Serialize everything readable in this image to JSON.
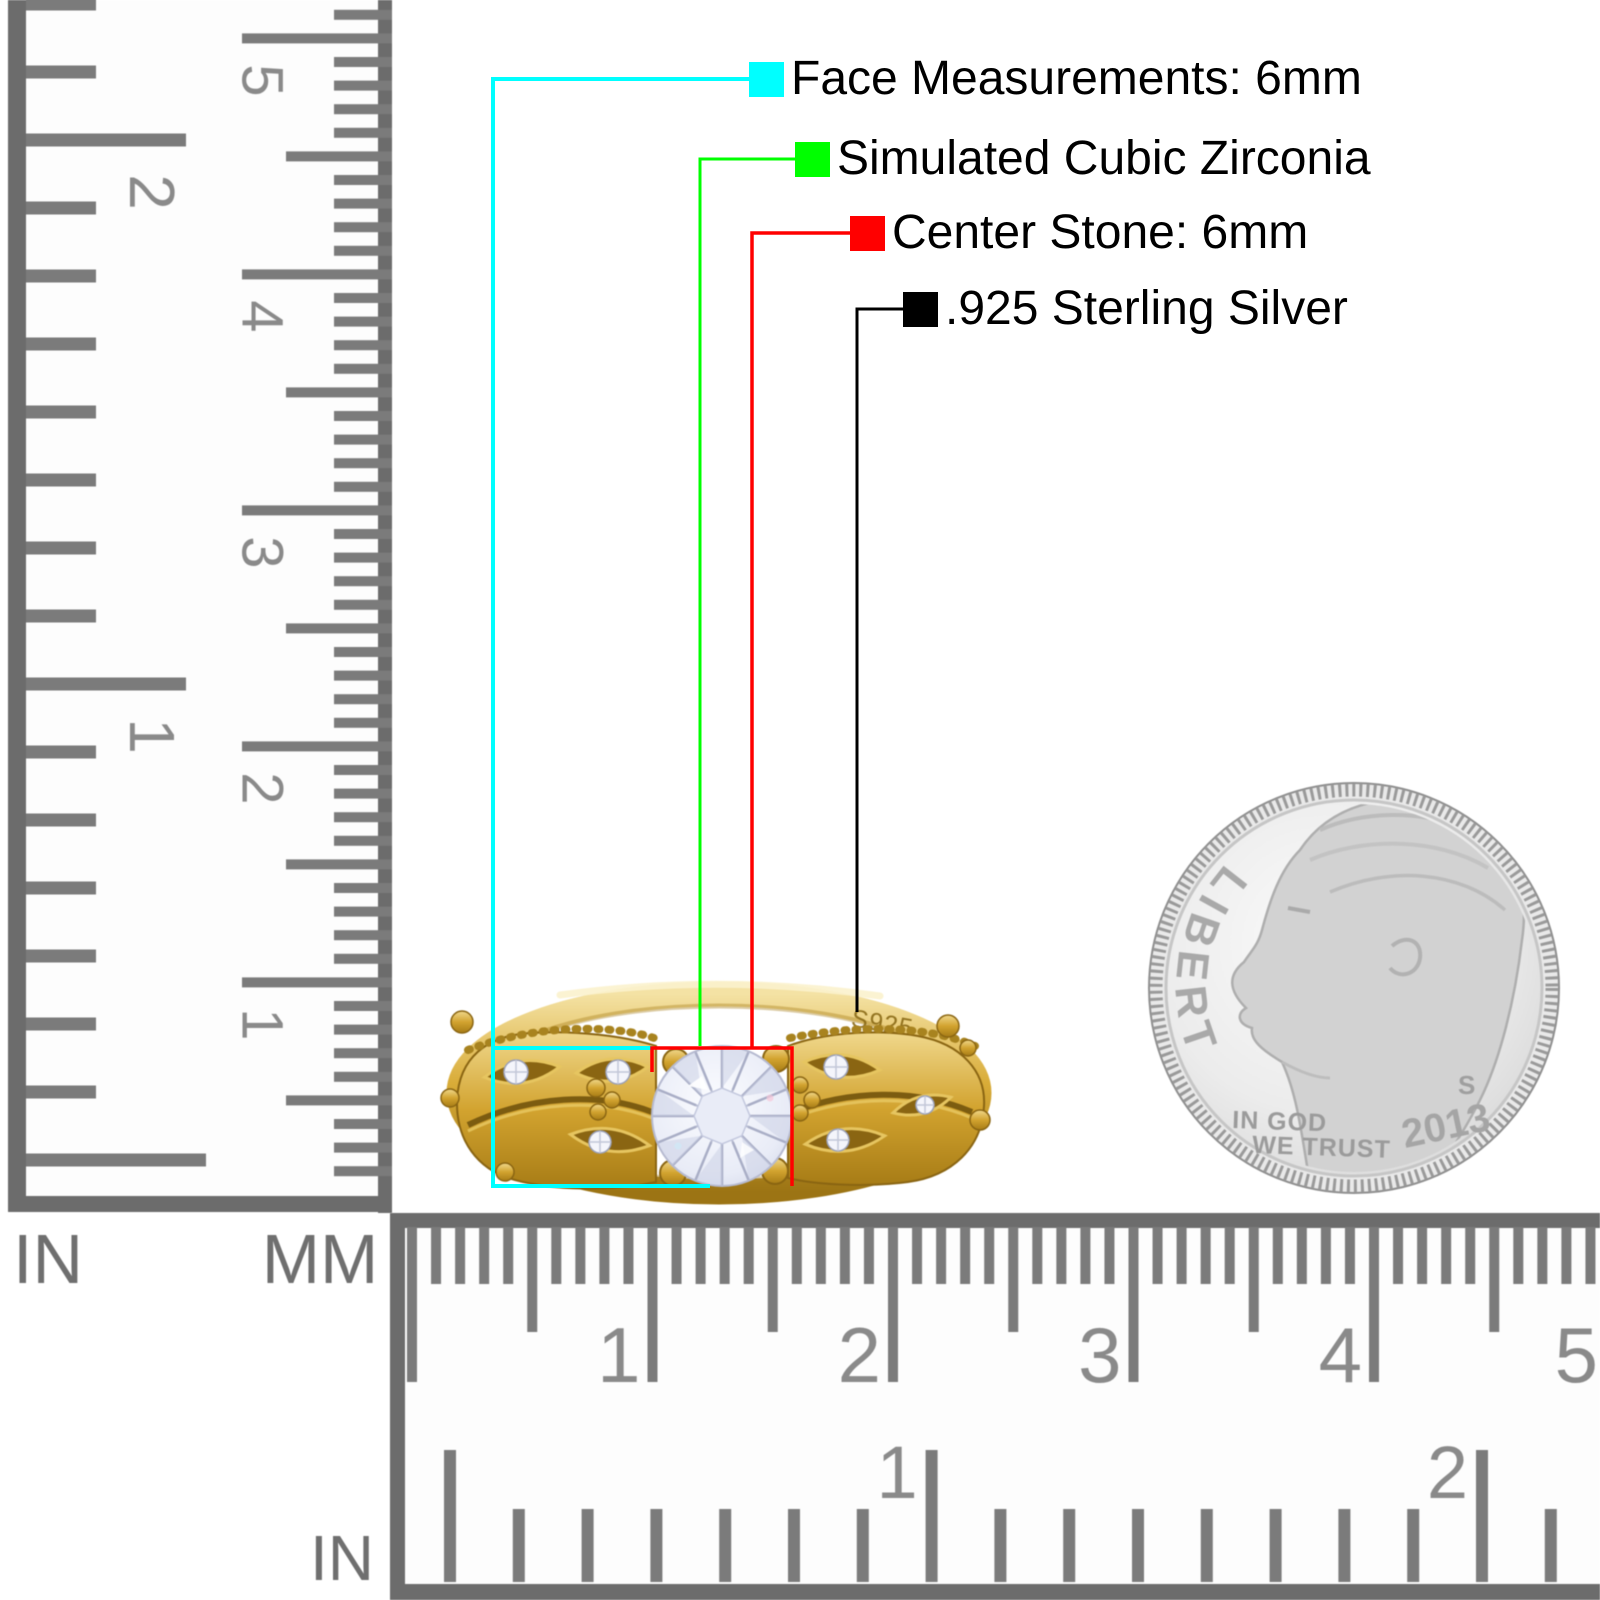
{
  "page": {
    "background": "#ffffff"
  },
  "callouts": {
    "rows": [
      {
        "key": "face",
        "color": "#00FFFF",
        "label": "Face Measurements: 6mm"
      },
      {
        "key": "cz",
        "color": "#00FF00",
        "label": "Simulated Cubic Zirconia"
      },
      {
        "key": "center",
        "color": "#FF0000",
        "label": "Center Stone: 6mm"
      },
      {
        "key": "silver",
        "color": "#000000",
        "label": ".925 Sterling Silver"
      }
    ]
  },
  "ring": {
    "engraving": "S925",
    "metal_color": "#D4AF37",
    "stone_color": "#EEF0F8"
  },
  "coin": {
    "legend": "LIBERTY",
    "motto_line1": "IN GOD",
    "motto_line2": "WE TRUST",
    "date": "2013",
    "mint_mark": "S"
  },
  "left_ruler": {
    "in_label": "IN",
    "mm_label": "MM",
    "inch_numbers": [
      "2",
      "1"
    ],
    "cm_numbers": [
      "5",
      "4",
      "3",
      "2",
      "1"
    ]
  },
  "bottom_ruler": {
    "in_label": "IN",
    "cm_numbers": [
      "1",
      "2",
      "3",
      "4",
      "5"
    ],
    "inch_numbers": [
      "1",
      "2"
    ]
  }
}
